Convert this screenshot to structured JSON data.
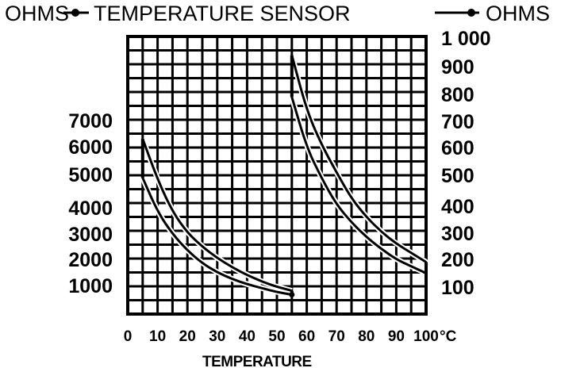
{
  "chart_data": {
    "type": "line",
    "title_left": "OHMS",
    "title_center": "TEMPERATURE  SENSOR",
    "title_right": "OHMS",
    "xlabel": "TEMPERATURE",
    "x_unit": "°C",
    "x_ticks": [
      0,
      10,
      20,
      30,
      40,
      50,
      60,
      70,
      80,
      90,
      100
    ],
    "x_tick_labels": [
      "0",
      "10",
      "20",
      "30",
      "40",
      "50",
      "60",
      "70",
      "80",
      "90",
      "100"
    ],
    "xlim": [
      0,
      100
    ],
    "grid": true,
    "left_axis": {
      "ticks": [
        1000,
        2000,
        3000,
        4000,
        5000,
        6000,
        7000
      ],
      "tick_labels": [
        "1000",
        "2000",
        "3000",
        "4000",
        "5000",
        "6000",
        "7000"
      ]
    },
    "right_axis": {
      "ticks": [
        100,
        200,
        300,
        400,
        500,
        600,
        700,
        800,
        900,
        1000
      ],
      "tick_labels": [
        "100",
        "200",
        "300",
        "400",
        "500",
        "600",
        "700",
        "800",
        "900",
        "1 000"
      ]
    },
    "series": [
      {
        "axis": "left",
        "x": [
          5,
          10,
          15,
          20,
          25,
          30,
          35,
          40,
          45,
          50,
          55
        ],
        "y": [
          6300,
          4850,
          3850,
          3050,
          2500,
          2050,
          1700,
          1400,
          1150,
          950,
          800
        ]
      },
      {
        "axis": "left",
        "x": [
          5,
          10,
          15,
          20,
          25,
          30,
          35,
          40,
          45,
          50,
          55
        ],
        "y": [
          4900,
          3850,
          3000,
          2350,
          1850,
          1500,
          1250,
          1050,
          900,
          750,
          650
        ]
      },
      {
        "axis": "right",
        "x": [
          55,
          60,
          65,
          70,
          75,
          80,
          85,
          90,
          95,
          100
        ],
        "y": [
          940,
          740,
          610,
          510,
          425,
          360,
          305,
          260,
          225,
          190
        ]
      },
      {
        "axis": "right",
        "x": [
          55,
          60,
          65,
          70,
          75,
          80,
          85,
          90,
          95,
          100
        ],
        "y": [
          790,
          600,
          490,
          405,
          340,
          285,
          240,
          200,
          175,
          150
        ]
      }
    ]
  }
}
